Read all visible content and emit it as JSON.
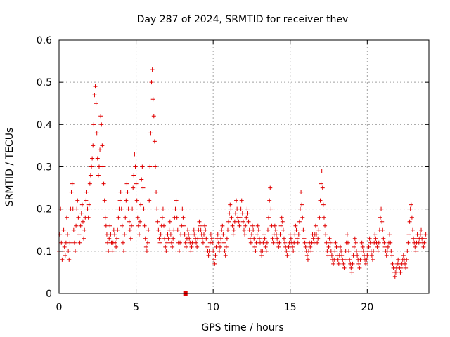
{
  "chart_data": {
    "type": "scatter",
    "title": "Day 287 of 2024, SRMTID for receiver thev",
    "xlabel": "GPS time / hours",
    "ylabel": "SRMTID / TECUs",
    "xlim": [
      0,
      24
    ],
    "ylim": [
      0,
      0.6
    ],
    "x_ticks": [
      0,
      5,
      10,
      15,
      20
    ],
    "x_tick_labels": [
      "0",
      "5",
      "10",
      "15",
      "20"
    ],
    "y_ticks": [
      0,
      0.1,
      0.2,
      0.3,
      0.4,
      0.5,
      0.6
    ],
    "y_tick_labels": [
      "0",
      "0.1",
      "0.2",
      "0.3",
      "0.4",
      "0.5",
      "0.6"
    ],
    "grid": true,
    "marker": "plus",
    "marker_color": "#e00000",
    "series": [
      {
        "name": "SRMTID",
        "x_step": 0.05,
        "x_start": 0.0,
        "y": [
          0.1,
          0.14,
          0.2,
          0.12,
          0.08,
          0.1,
          0.15,
          0.11,
          0.09,
          0.12,
          0.18,
          0.14,
          0.1,
          0.08,
          0.12,
          0.2,
          0.24,
          0.26,
          0.2,
          0.15,
          0.12,
          0.1,
          0.16,
          0.2,
          0.22,
          0.18,
          0.14,
          0.12,
          0.16,
          0.19,
          0.21,
          0.17,
          0.13,
          0.15,
          0.18,
          0.22,
          0.24,
          0.2,
          0.18,
          0.21,
          0.26,
          0.28,
          0.3,
          0.32,
          0.35,
          0.4,
          0.47,
          0.49,
          0.45,
          0.38,
          0.32,
          0.28,
          0.3,
          0.34,
          0.42,
          0.4,
          0.35,
          0.3,
          0.26,
          0.22,
          0.18,
          0.16,
          0.14,
          0.12,
          0.1,
          0.13,
          0.16,
          0.14,
          0.12,
          0.1,
          0.12,
          0.15,
          0.14,
          0.12,
          0.11,
          0.13,
          0.15,
          0.18,
          0.2,
          0.22,
          0.24,
          0.2,
          0.16,
          0.12,
          0.1,
          0.14,
          0.18,
          0.22,
          0.26,
          0.24,
          0.2,
          0.17,
          0.15,
          0.13,
          0.16,
          0.2,
          0.25,
          0.28,
          0.33,
          0.3,
          0.26,
          0.22,
          0.18,
          0.16,
          0.14,
          0.17,
          0.21,
          0.27,
          0.3,
          0.25,
          0.2,
          0.16,
          0.13,
          0.11,
          0.1,
          0.12,
          0.15,
          0.22,
          0.3,
          0.38,
          0.5,
          0.53,
          0.46,
          0.42,
          0.36,
          0.3,
          0.24,
          0.2,
          0.17,
          0.15,
          0.13,
          0.12,
          0.14,
          0.16,
          0.18,
          0.2,
          0.16,
          0.13,
          0.11,
          0.1,
          0.12,
          0.14,
          0.13,
          0.15,
          0.17,
          0.14,
          0.12,
          0.11,
          0.13,
          0.15,
          0.18,
          0.2,
          0.22,
          0.18,
          0.15,
          0.12,
          0.1,
          0.12,
          0.14,
          0.16,
          0.2,
          0.18,
          0.16,
          0.14,
          0.12,
          0.11,
          0.13,
          0.15,
          0.14,
          0.13,
          0.12,
          0.1,
          0.11,
          0.12,
          0.14,
          0.15,
          0.14,
          0.13,
          0.12,
          0.11,
          0.13,
          0.15,
          0.17,
          0.16,
          0.15,
          0.14,
          0.13,
          0.12,
          0.14,
          0.16,
          0.15,
          0.13,
          0.11,
          0.1,
          0.09,
          0.1,
          0.12,
          0.14,
          0.13,
          0.12,
          0.1,
          0.08,
          0.07,
          0.09,
          0.11,
          0.13,
          0.14,
          0.12,
          0.1,
          0.11,
          0.13,
          0.15,
          0.16,
          0.14,
          0.12,
          0.1,
          0.09,
          0.11,
          0.13,
          0.15,
          0.17,
          0.19,
          0.21,
          0.2,
          0.18,
          0.16,
          0.14,
          0.15,
          0.17,
          0.19,
          0.22,
          0.2,
          0.18,
          0.17,
          0.16,
          0.18,
          0.2,
          0.22,
          0.19,
          0.17,
          0.15,
          0.14,
          0.16,
          0.18,
          0.2,
          0.19,
          0.17,
          0.15,
          0.13,
          0.12,
          0.14,
          0.16,
          0.15,
          0.13,
          0.11,
          0.1,
          0.12,
          0.14,
          0.16,
          0.15,
          0.13,
          0.12,
          0.1,
          0.09,
          0.1,
          0.12,
          0.14,
          0.13,
          0.11,
          0.1,
          0.12,
          0.15,
          0.18,
          0.22,
          0.25,
          0.2,
          0.16,
          0.13,
          0.12,
          0.14,
          0.16,
          0.15,
          0.14,
          0.13,
          0.12,
          0.11,
          0.12,
          0.14,
          0.16,
          0.18,
          0.17,
          0.15,
          0.13,
          0.12,
          0.11,
          0.1,
          0.09,
          0.1,
          0.11,
          0.12,
          0.14,
          0.13,
          0.12,
          0.11,
          0.1,
          0.12,
          0.14,
          0.16,
          0.15,
          0.13,
          0.12,
          0.14,
          0.17,
          0.2,
          0.24,
          0.21,
          0.18,
          0.15,
          0.13,
          0.12,
          0.11,
          0.1,
          0.09,
          0.08,
          0.1,
          0.12,
          0.11,
          0.1,
          0.12,
          0.14,
          0.13,
          0.12,
          0.14,
          0.16,
          0.14,
          0.12,
          0.13,
          0.15,
          0.18,
          0.22,
          0.26,
          0.29,
          0.25,
          0.21,
          0.18,
          0.16,
          0.14,
          0.12,
          0.1,
          0.09,
          0.11,
          0.13,
          0.12,
          0.1,
          0.09,
          0.08,
          0.07,
          0.08,
          0.1,
          0.12,
          0.11,
          0.09,
          0.08,
          0.07,
          0.09,
          0.11,
          0.1,
          0.09,
          0.08,
          0.07,
          0.06,
          0.08,
          0.1,
          0.12,
          0.14,
          0.12,
          0.1,
          0.08,
          0.07,
          0.06,
          0.05,
          0.07,
          0.09,
          0.11,
          0.13,
          0.12,
          0.1,
          0.09,
          0.08,
          0.07,
          0.06,
          0.08,
          0.1,
          0.12,
          0.11,
          0.1,
          0.09,
          0.08,
          0.07,
          0.08,
          0.09,
          0.1,
          0.11,
          0.13,
          0.12,
          0.1,
          0.09,
          0.08,
          0.1,
          0.12,
          0.14,
          0.13,
          0.12,
          0.11,
          0.1,
          0.12,
          0.15,
          0.18,
          0.2,
          0.17,
          0.15,
          0.13,
          0.12,
          0.11,
          0.1,
          0.09,
          0.1,
          0.11,
          0.12,
          0.14,
          0.12,
          0.1,
          0.09,
          0.07,
          0.06,
          0.05,
          0.04,
          0.05,
          0.06,
          0.07,
          0.08,
          0.07,
          0.06,
          0.05,
          0.06,
          0.07,
          0.08,
          0.09,
          0.08,
          0.07,
          0.06,
          0.08,
          0.1,
          0.12,
          0.14,
          0.17,
          0.2,
          0.21,
          0.18,
          0.15,
          0.13,
          0.12,
          0.11,
          0.1,
          0.12,
          0.14,
          0.13,
          0.12,
          0.13,
          0.14,
          0.15,
          0.13,
          0.12,
          0.11,
          0.12,
          0.13,
          0.14
        ]
      }
    ],
    "outlier": {
      "x": 8.2,
      "y": 0.0,
      "marker": "square"
    }
  }
}
